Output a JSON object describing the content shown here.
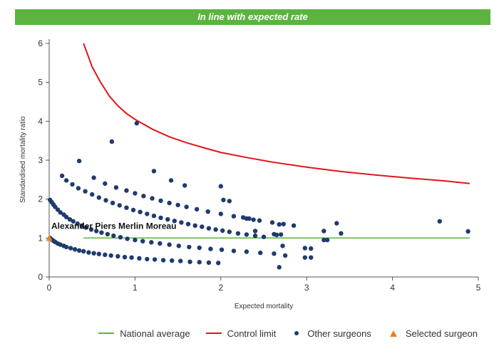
{
  "banner": {
    "text": "In line with expected rate",
    "color": "#5cb33f"
  },
  "chart_data": {
    "type": "scatter",
    "xlabel": "Expected mortality",
    "ylabel": "Standardised mortality ratio",
    "xlim": [
      0,
      5
    ],
    "ylim": [
      0,
      6
    ],
    "xticks": [
      0,
      1,
      2,
      3,
      4,
      5
    ],
    "yticks": [
      0,
      1,
      2,
      3,
      4,
      5,
      6
    ],
    "grid": false,
    "legend_position": "bottom-right",
    "series": [
      {
        "name": "National average",
        "kind": "line",
        "color": "#5cb33f",
        "x": [
          0.4,
          4.9
        ],
        "y": [
          1,
          1
        ]
      },
      {
        "name": "Control limit",
        "kind": "line",
        "color": "#e0161b",
        "x": [
          0.4,
          0.5,
          0.6,
          0.7,
          0.8,
          0.9,
          1.0,
          1.2,
          1.4,
          1.6,
          1.8,
          2.0,
          2.3,
          2.6,
          3.0,
          3.4,
          3.8,
          4.2,
          4.6,
          4.9
        ],
        "y": [
          6.0,
          5.4,
          5.0,
          4.65,
          4.4,
          4.2,
          4.05,
          3.8,
          3.6,
          3.45,
          3.32,
          3.2,
          3.07,
          2.95,
          2.82,
          2.71,
          2.62,
          2.54,
          2.47,
          2.4
        ]
      },
      {
        "name": "Other surgeons",
        "kind": "points",
        "color": "#1f3b6e",
        "x": [
          0.01,
          0.03,
          0.05,
          0.07,
          0.1,
          0.13,
          0.17,
          0.2,
          0.25,
          0.3,
          0.35,
          0.4,
          0.46,
          0.52,
          0.58,
          0.65,
          0.72,
          0.8,
          0.88,
          0.96,
          1.05,
          1.14,
          1.23,
          1.33,
          1.43,
          1.53,
          1.64,
          1.75,
          1.86,
          1.97,
          0.01,
          0.03,
          0.05,
          0.07,
          0.1,
          0.13,
          0.17,
          0.2,
          0.24,
          0.28,
          0.33,
          0.38,
          0.43,
          0.49,
          0.55,
          0.61,
          0.68,
          0.75,
          0.83,
          0.91,
          1.0,
          1.09,
          1.19,
          1.29,
          1.4,
          1.51,
          1.63,
          1.75,
          1.88,
          2.01,
          2.15,
          2.3,
          2.46,
          2.62,
          0.15,
          0.2,
          0.27,
          0.34,
          0.42,
          0.5,
          0.58,
          0.66,
          0.74,
          0.82,
          0.9,
          0.98,
          1.06,
          1.14,
          1.22,
          1.3,
          1.38,
          1.46,
          1.54,
          1.62,
          1.7,
          1.78,
          1.86,
          1.94,
          2.02,
          2.1,
          2.2,
          2.3,
          2.4,
          2.5,
          0.35,
          0.52,
          0.65,
          0.78,
          0.9,
          1.0,
          1.1,
          1.2,
          1.3,
          1.4,
          1.5,
          1.6,
          1.72,
          1.85,
          2.0,
          2.15,
          2.3,
          2.45,
          2.6,
          2.73,
          2.85,
          1.02,
          0.73,
          1.22,
          1.42,
          1.58,
          2.0,
          2.03,
          2.1,
          2.26,
          2.33,
          2.38,
          2.4,
          2.62,
          2.65,
          2.68,
          2.7,
          2.72,
          2.75,
          3.2,
          3.24,
          3.35,
          3.4,
          3.2,
          2.98,
          3.05,
          2.98,
          3.05,
          2.68,
          4.55,
          4.88
        ],
        "y": [
          1.0,
          0.96,
          0.93,
          0.9,
          0.86,
          0.83,
          0.8,
          0.77,
          0.74,
          0.71,
          0.68,
          0.66,
          0.63,
          0.61,
          0.59,
          0.57,
          0.55,
          0.53,
          0.51,
          0.5,
          0.48,
          0.46,
          0.45,
          0.43,
          0.42,
          0.41,
          0.39,
          0.38,
          0.37,
          0.36,
          1.98,
          1.92,
          1.86,
          1.8,
          1.73,
          1.66,
          1.6,
          1.54,
          1.48,
          1.43,
          1.37,
          1.32,
          1.27,
          1.22,
          1.18,
          1.14,
          1.1,
          1.06,
          1.02,
          0.98,
          0.95,
          0.92,
          0.89,
          0.86,
          0.83,
          0.8,
          0.77,
          0.75,
          0.72,
          0.7,
          0.67,
          0.65,
          0.62,
          0.6,
          2.6,
          2.48,
          2.38,
          2.28,
          2.2,
          2.12,
          2.04,
          1.97,
          1.9,
          1.84,
          1.78,
          1.72,
          1.67,
          1.62,
          1.57,
          1.52,
          1.48,
          1.44,
          1.4,
          1.36,
          1.32,
          1.29,
          1.25,
          1.22,
          1.19,
          1.16,
          1.12,
          1.09,
          1.06,
          1.03,
          2.98,
          2.55,
          2.4,
          2.3,
          2.22,
          2.15,
          2.08,
          2.02,
          1.96,
          1.9,
          1.85,
          1.8,
          1.74,
          1.68,
          1.62,
          1.56,
          1.5,
          1.45,
          1.4,
          1.36,
          1.32,
          3.95,
          3.48,
          2.72,
          2.48,
          2.35,
          2.33,
          1.98,
          1.95,
          1.53,
          1.5,
          1.47,
          1.18,
          1.1,
          1.08,
          1.35,
          1.09,
          0.8,
          0.55,
          1.18,
          0.95,
          1.38,
          1.12,
          0.95,
          0.74,
          0.73,
          0.5,
          0.5,
          0.25,
          1.43,
          1.17
        ]
      },
      {
        "name": "Selected surgeon",
        "kind": "marker",
        "color": "#e8821e",
        "x": [
          0
        ],
        "y": [
          1
        ],
        "label": "Alexander Piers Merlin Moreau"
      }
    ]
  }
}
